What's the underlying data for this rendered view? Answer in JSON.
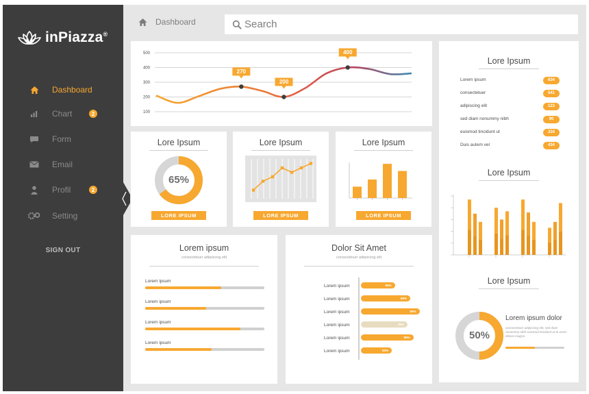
{
  "app": {
    "name": "inPiazza",
    "trademark": "®"
  },
  "colors": {
    "accent": "#f7a830",
    "sidebar": "#3d3d3d",
    "background": "#e6e6e6",
    "text": "#4a4a4a",
    "muted": "#8b8b8b"
  },
  "sidebar": {
    "items": [
      {
        "label": "Dashboard",
        "icon": "home-icon",
        "active": true,
        "badge": null
      },
      {
        "label": "Chart",
        "icon": "bar-chart-icon",
        "active": false,
        "badge": "2"
      },
      {
        "label": "Form",
        "icon": "speech-bubble-icon",
        "active": false,
        "badge": null
      },
      {
        "label": "Email",
        "icon": "envelope-icon",
        "active": false,
        "badge": null
      },
      {
        "label": "Profil",
        "icon": "person-icon",
        "active": false,
        "badge": "2"
      },
      {
        "label": "Setting",
        "icon": "gears-icon",
        "active": false,
        "badge": null
      }
    ],
    "signout_label": "SIGN OUT"
  },
  "header": {
    "breadcrumb": "Dashboard",
    "search_placeholder": "Search"
  },
  "line_chart": {
    "chart_data": {
      "type": "line",
      "ylim": [
        100,
        500
      ],
      "yticks": [
        "100",
        "200",
        "300",
        "400",
        "500"
      ],
      "x": [
        0,
        1,
        2,
        3,
        4,
        5,
        6,
        7,
        8,
        9,
        10,
        11,
        12
      ],
      "values": [
        210,
        160,
        205,
        255,
        270,
        240,
        200,
        260,
        360,
        400,
        390,
        355,
        360
      ],
      "callouts": [
        {
          "x": 4,
          "label": "270"
        },
        {
          "x": 6,
          "label": "200"
        },
        {
          "x": 9,
          "label": "400"
        }
      ]
    }
  },
  "donut_card": {
    "title": "Lore Ipsum",
    "value_label": "65%",
    "percent": 65,
    "button": "LORE IPSUM"
  },
  "mini_line_card": {
    "title": "Lore Ipsum",
    "button": "LORE IPSUM",
    "chart_data": {
      "type": "line",
      "values": [
        1,
        3,
        4,
        6,
        5,
        6,
        7
      ],
      "ylim": [
        0,
        8
      ]
    }
  },
  "mini_bar_card": {
    "title": "Lore Ipsum",
    "button": "LORE IPSUM",
    "chart_data": {
      "type": "bar",
      "values": [
        1.6,
        2.6,
        4.8,
        3.8
      ],
      "ylim": [
        0,
        5
      ]
    }
  },
  "progress_card": {
    "title": "Lorem ipsum",
    "subtitle": "consectetuer adipiscing elit",
    "rows": [
      {
        "label": "Lorem ipsum",
        "pct": 64
      },
      {
        "label": "Lorem ipsum",
        "pct": 51
      },
      {
        "label": "Lorem ipsum",
        "pct": 80
      },
      {
        "label": "Lorem ipsum",
        "pct": 56
      }
    ]
  },
  "hbar_card": {
    "title": "Dolor Sit Amet",
    "subtitle": "consectetuer adipiscing elit",
    "rows": [
      {
        "label": "Lorem ipsum",
        "value": "55%",
        "pct": 55,
        "color": "#f7a830"
      },
      {
        "label": "Lorem ipsum",
        "value": "80%",
        "pct": 80,
        "color": "#f7a830"
      },
      {
        "label": "Lorem ipsum",
        "value": "95%",
        "pct": 95,
        "color": "#f7a830"
      },
      {
        "label": "Lorem ipsum",
        "value": "75%",
        "pct": 75,
        "color": "#e8dcc0"
      },
      {
        "label": "Lorem ipsum",
        "value": "85%",
        "pct": 85,
        "color": "#f7a830"
      },
      {
        "label": "Lorem ipsum",
        "value": "50%",
        "pct": 50,
        "color": "#f7a830"
      }
    ]
  },
  "right_panel": {
    "list_title": "Lore Ipsum",
    "list": [
      {
        "label": "Lorem ipsum",
        "value": "634"
      },
      {
        "label": "consectetuer",
        "value": "541"
      },
      {
        "label": "adipiscing elit",
        "value": "123"
      },
      {
        "label": "sed diam nonummy nibh",
        "value": "90"
      },
      {
        "label": "euismod tincidunt ut",
        "value": "334"
      },
      {
        "label": "Duis autem vel",
        "value": "434"
      }
    ],
    "grouped_title": "Lore Ipsum",
    "grouped_chart": {
      "chart_data": {
        "type": "bar",
        "ylim": [
          0,
          50
        ],
        "groups": [
          [
            47,
            35,
            28
          ],
          [
            40,
            30,
            37
          ],
          [
            47,
            36,
            28
          ],
          [
            23,
            28,
            44
          ]
        ]
      }
    },
    "donut_title": "Lore Ipsum",
    "donut_value_label": "50%",
    "donut_percent": 50,
    "donut_heading": "Lorem ipsum dolor",
    "donut_text": "consectetuer adipiscing elit, sed diam nonummy nibh euismod tincidunt ut la oreet dolore magna"
  }
}
